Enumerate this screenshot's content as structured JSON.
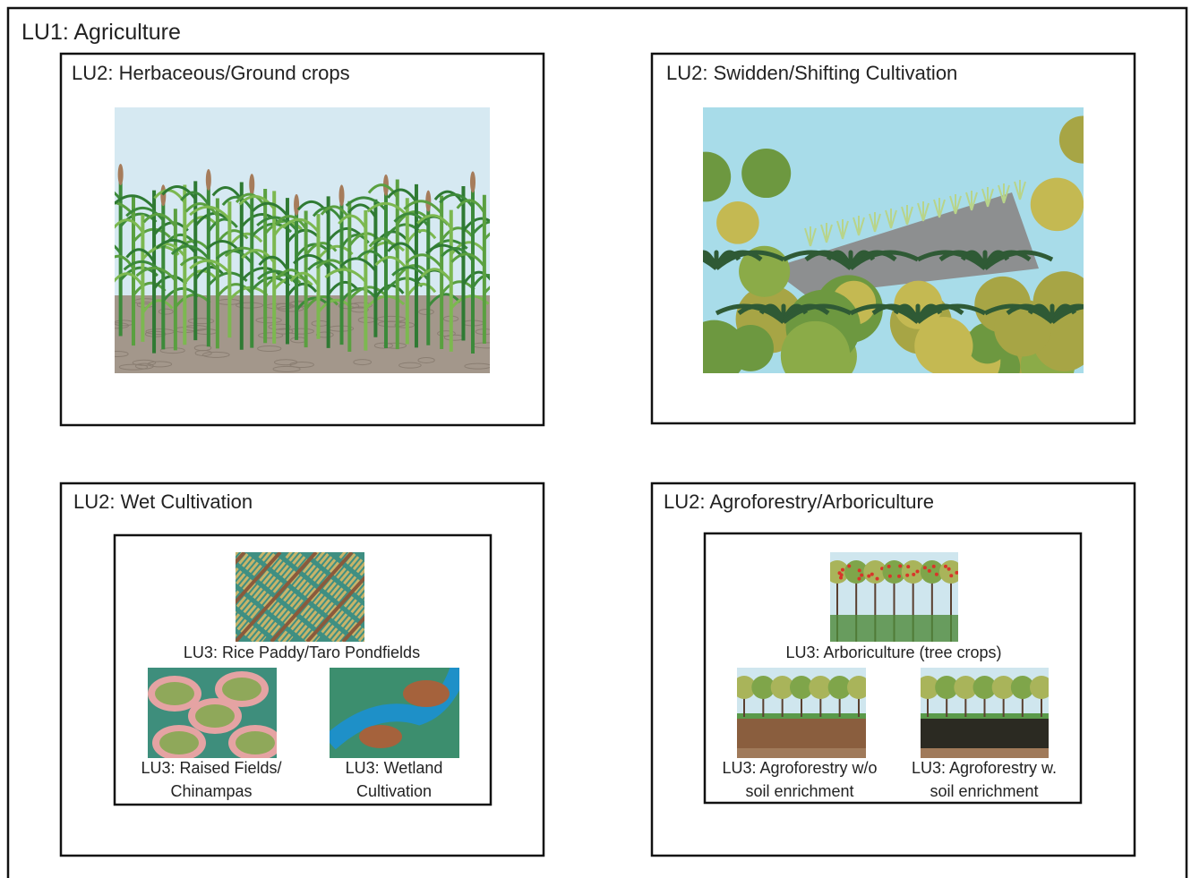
{
  "title": "LU1: Agriculture",
  "panels": [
    {
      "title": "LU2: Herbaceous/Ground crops"
    },
    {
      "title": "LU2: Swidden/Shifting Cultivation"
    },
    {
      "title": "LU2: Wet Cultivation",
      "items": [
        {
          "label": [
            "LU3: Rice Paddy/Taro Pondfields"
          ]
        },
        {
          "label": [
            "LU3: Raised Fields/",
            "Chinampas"
          ]
        },
        {
          "label": [
            "LU3: Wetland",
            "Cultivation"
          ]
        }
      ]
    },
    {
      "title": "LU2: Agroforestry/Arboriculture",
      "items": [
        {
          "label": [
            "LU3: Arboriculture (tree crops)"
          ]
        },
        {
          "label": [
            "LU3: Agroforestry w/o",
            "soil enrichment"
          ]
        },
        {
          "label": [
            "LU3: Agroforestry w.",
            "soil enrichment"
          ]
        }
      ]
    }
  ]
}
